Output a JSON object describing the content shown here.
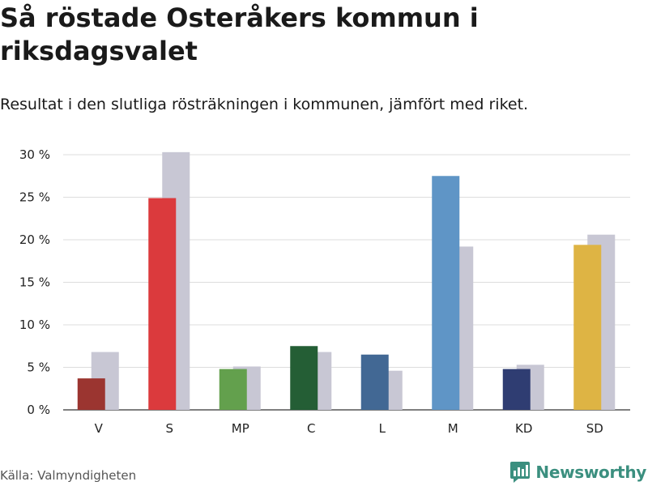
{
  "header": {
    "title": "Så röstade Osteråkers kommun i riksdagsvalet",
    "subtitle": "Resultat i den slutliga rösträkningen i kommunen, jämfört med riket."
  },
  "footer": {
    "source": "Källa: Valmyndigheten",
    "brand": "Newsworthy",
    "brand_icon": "bar-chart-speech-bubble-icon"
  },
  "chart_data": {
    "type": "bar",
    "title": "Så röstade Osteråkers kommun i riksdagsvalet",
    "xlabel": "",
    "ylabel": "",
    "ylim": [
      0,
      30
    ],
    "yticks": [
      0,
      5,
      10,
      15,
      20,
      25,
      30
    ],
    "ytick_labels": [
      "0 %",
      "5 %",
      "10 %",
      "15 %",
      "20 %",
      "25 %",
      "30 %"
    ],
    "categories": [
      "V",
      "S",
      "MP",
      "C",
      "L",
      "M",
      "KD",
      "SD"
    ],
    "party_colors": [
      "#9b3530",
      "#db3a3d",
      "#63a04d",
      "#245e35",
      "#426894",
      "#5f95c6",
      "#2f3d72",
      "#deb444"
    ],
    "national_color": "#c8c7d4",
    "grid": true,
    "series": [
      {
        "name": "Kommunen",
        "values": [
          3.7,
          24.9,
          4.8,
          7.5,
          6.5,
          27.5,
          4.8,
          19.4
        ]
      },
      {
        "name": "Riket",
        "values": [
          6.8,
          30.3,
          5.1,
          6.8,
          4.6,
          19.2,
          5.3,
          20.6
        ]
      }
    ]
  }
}
